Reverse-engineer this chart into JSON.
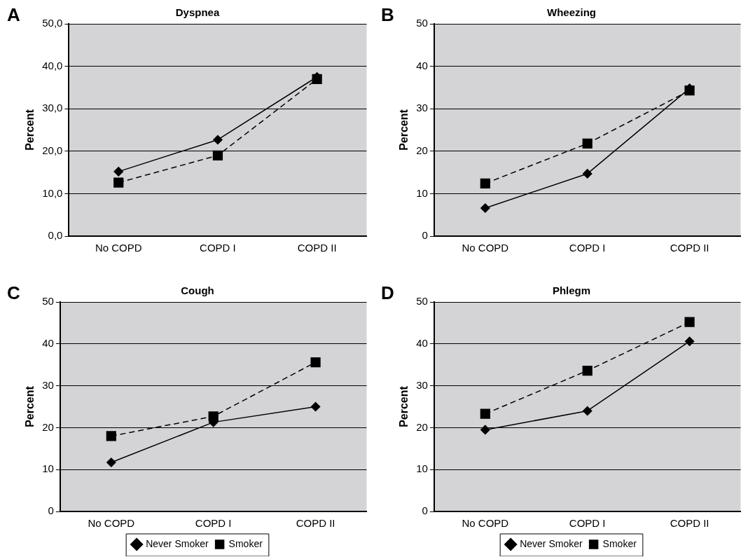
{
  "chart_data": [
    {
      "type": "line",
      "title": "Dyspnea",
      "ylabel": "Percent",
      "annotations": [
        "A"
      ],
      "categories": [
        "No COPD",
        "COPD I",
        "COPD II"
      ],
      "series": [
        {
          "color": "#000000",
          "marker": "diamond",
          "line_style": "solid",
          "values": [
            15.2,
            22.7,
            37.5
          ]
        },
        {
          "color": "#000000",
          "marker": "square",
          "line_style": "dashed",
          "values": [
            12.6,
            19.0,
            37.0
          ]
        }
      ],
      "ylim": [
        0,
        50
      ],
      "yticks": [
        {
          "value": 0,
          "label": "0,0"
        },
        {
          "value": 10,
          "label": "10,0"
        },
        {
          "value": 20,
          "label": "20,0"
        },
        {
          "value": 30,
          "label": "30,0"
        },
        {
          "value": 40,
          "label": "40,0"
        },
        {
          "value": 50,
          "label": "50,0"
        }
      ],
      "grid": "y",
      "legend": false
    },
    {
      "type": "line",
      "title": "Wheezing",
      "ylabel": "Percent",
      "annotations": [
        "B"
      ],
      "categories": [
        "No COPD",
        "COPD I",
        "COPD II"
      ],
      "series": [
        {
          "color": "#000000",
          "marker": "diamond",
          "line_style": "solid",
          "values": [
            6.6,
            14.7,
            34.8
          ]
        },
        {
          "color": "#000000",
          "marker": "square",
          "line_style": "dashed",
          "values": [
            12.4,
            21.8,
            34.3
          ]
        }
      ],
      "ylim": [
        0,
        50
      ],
      "yticks": [
        0,
        10,
        20,
        30,
        40,
        50
      ],
      "grid": "y",
      "legend": false
    },
    {
      "type": "line",
      "title": "Cough",
      "ylabel": "Percent",
      "annotations": [
        "C"
      ],
      "categories": [
        "No COPD",
        "COPD I",
        "COPD II"
      ],
      "series": [
        {
          "name": "Never Smoker",
          "color": "#000000",
          "marker": "diamond",
          "line_style": "solid",
          "values": [
            11.7,
            21.3,
            25.0
          ]
        },
        {
          "name": "Smoker",
          "color": "#000000",
          "marker": "square",
          "line_style": "dashed",
          "values": [
            18.0,
            22.7,
            35.6
          ]
        }
      ],
      "ylim": [
        0,
        50
      ],
      "yticks": [
        0,
        10,
        20,
        30,
        40,
        50
      ],
      "grid": "y",
      "legend": "bottom"
    },
    {
      "type": "line",
      "title": "Phlegm",
      "ylabel": "Percent",
      "annotations": [
        "D"
      ],
      "categories": [
        "No COPD",
        "COPD I",
        "COPD II"
      ],
      "series": [
        {
          "name": "Never Smoker",
          "color": "#000000",
          "marker": "diamond",
          "line_style": "solid",
          "values": [
            19.5,
            24.0,
            40.6
          ]
        },
        {
          "name": "Smoker",
          "color": "#000000",
          "marker": "square",
          "line_style": "dashed",
          "values": [
            23.3,
            33.6,
            45.2
          ]
        }
      ],
      "ylim": [
        0,
        50
      ],
      "yticks": [
        0,
        10,
        20,
        30,
        40,
        50
      ],
      "grid": "y",
      "legend": "bottom"
    }
  ]
}
